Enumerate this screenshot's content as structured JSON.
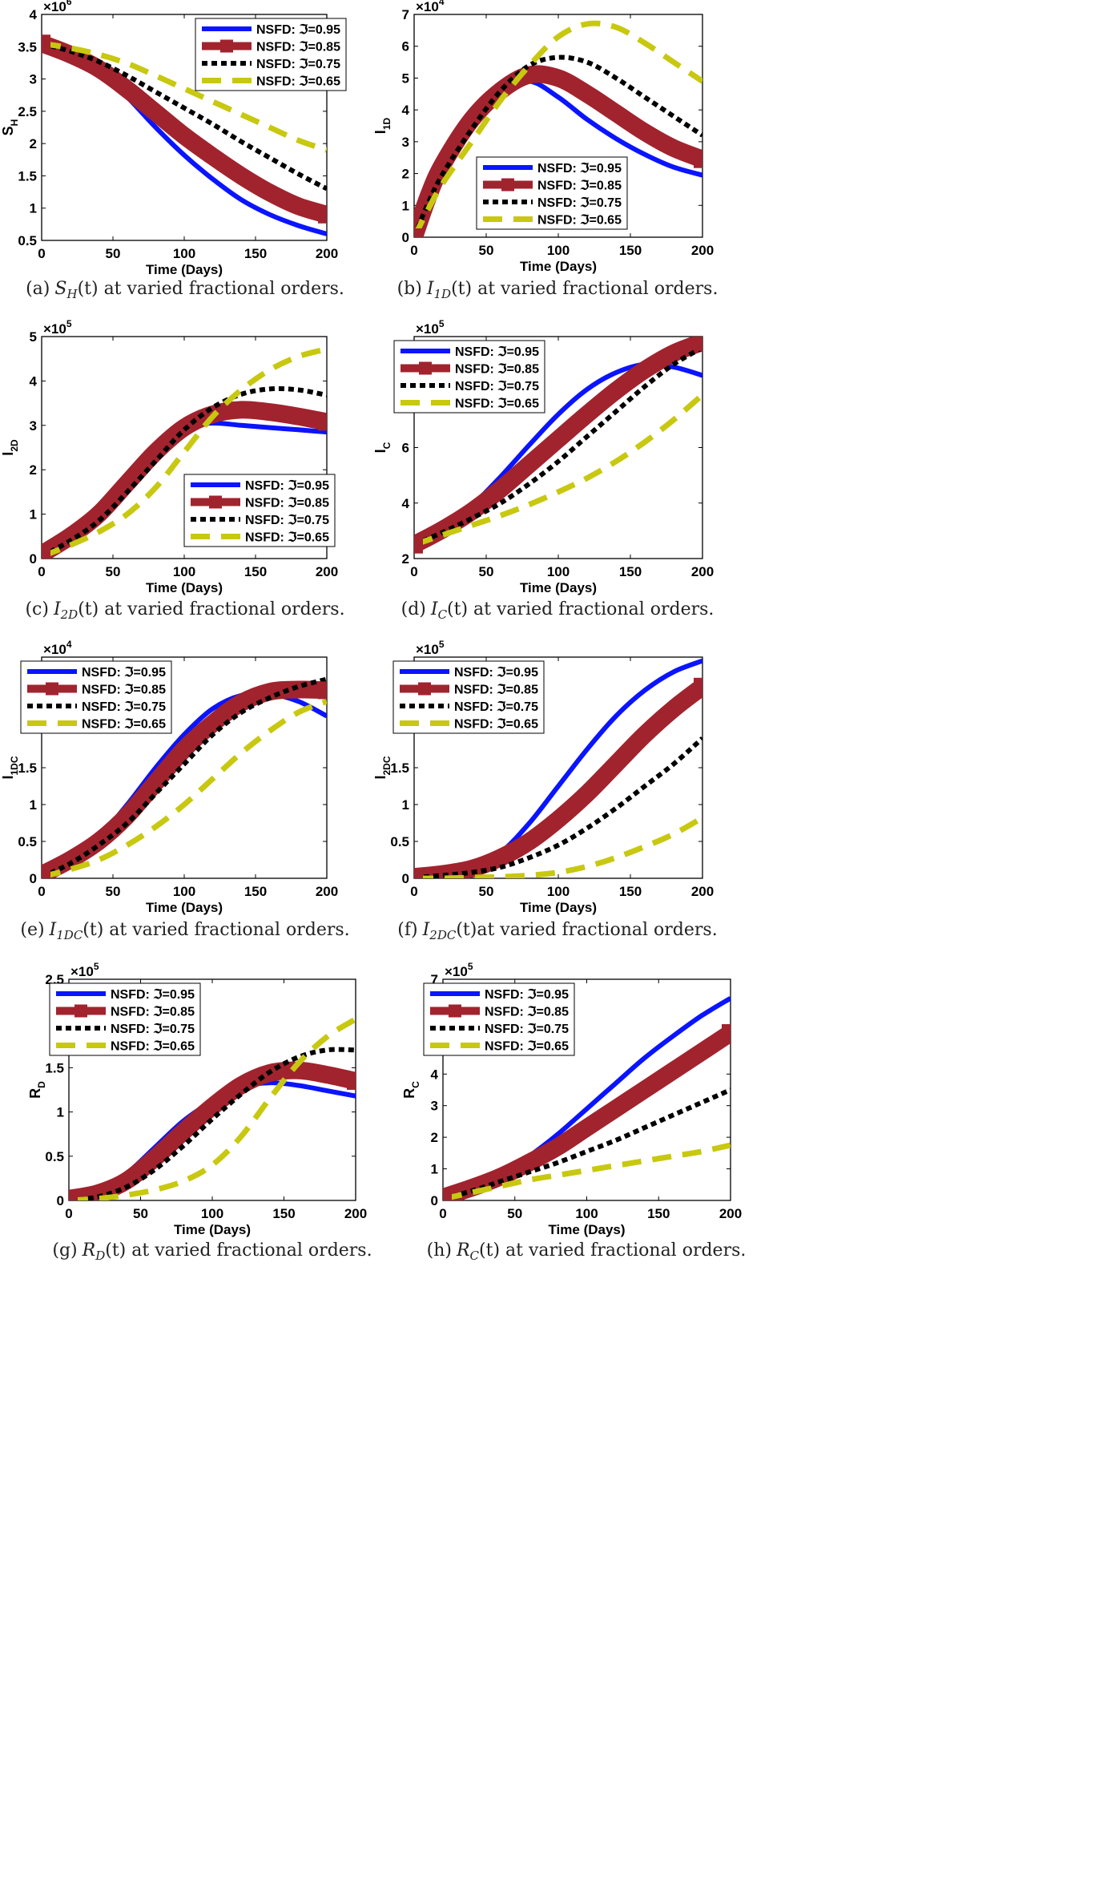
{
  "series_names": [
    "NSFD: ℑ=0.95",
    "NSFD: ℑ=0.85",
    "NSFD: ℑ=0.75",
    "NSFD: ℑ=0.65"
  ],
  "series_colors": [
    "#0a14ff",
    "#a1232e",
    "#000000",
    "#c8c810"
  ],
  "chart_data": [
    {
      "type": "line",
      "id": "a",
      "caption": {
        "letter": "(a)",
        "var": "S",
        "sub": "H",
        "rest": "(t) at varied fractional orders."
      },
      "ylabel": {
        "base": "S",
        "sub": "H"
      },
      "xlabel": "Time (Days)",
      "xlim": [
        0,
        200
      ],
      "ylim": [
        0.5,
        4
      ],
      "exponent": "6",
      "xticks": [
        0,
        50,
        100,
        150,
        200
      ],
      "yticks": [
        0.5,
        1,
        1.5,
        2,
        2.5,
        3,
        3.5,
        4
      ],
      "legend": "top-right",
      "x": [
        0,
        20,
        40,
        60,
        80,
        100,
        120,
        140,
        160,
        180,
        200
      ],
      "series": [
        {
          "name": "NSFD: ℑ=0.95",
          "values": [
            3.55,
            3.38,
            3.12,
            2.72,
            2.25,
            1.82,
            1.45,
            1.13,
            0.9,
            0.73,
            0.6
          ]
        },
        {
          "name": "NSFD: ℑ=0.85",
          "values": [
            3.55,
            3.38,
            3.16,
            2.84,
            2.48,
            2.12,
            1.8,
            1.5,
            1.24,
            1.03,
            0.9
          ]
        },
        {
          "name": "NSFD: ℑ=0.75",
          "values": [
            3.55,
            3.43,
            3.27,
            3.05,
            2.8,
            2.55,
            2.3,
            2.03,
            1.78,
            1.53,
            1.3
          ]
        },
        {
          "name": "NSFD: ℑ=0.65",
          "values": [
            3.55,
            3.48,
            3.38,
            3.24,
            3.05,
            2.85,
            2.65,
            2.45,
            2.25,
            2.05,
            1.9
          ]
        }
      ]
    },
    {
      "type": "line",
      "id": "b",
      "caption": {
        "letter": "(b)",
        "var": "I",
        "sub": "1D",
        "rest": "(t) at varied fractional orders."
      },
      "ylabel": {
        "base": "I",
        "sub": "1D"
      },
      "xlabel": "Time (Days)",
      "xlim": [
        0,
        200
      ],
      "ylim": [
        0,
        7
      ],
      "exponent": "4",
      "xticks": [
        0,
        50,
        100,
        150,
        200
      ],
      "yticks": [
        0,
        1,
        2,
        3,
        4,
        5,
        6,
        7
      ],
      "legend": "bottom-center",
      "x": [
        0,
        10,
        20,
        40,
        60,
        80,
        100,
        120,
        140,
        160,
        180,
        200
      ],
      "series": [
        {
          "name": "NSFD: ℑ=0.95",
          "values": [
            0,
            1.3,
            2.3,
            3.7,
            4.6,
            4.9,
            4.4,
            3.7,
            3.1,
            2.6,
            2.2,
            1.95
          ]
        },
        {
          "name": "NSFD: ℑ=0.85",
          "values": [
            0,
            1.3,
            2.3,
            3.7,
            4.6,
            5.1,
            5.0,
            4.5,
            3.9,
            3.3,
            2.8,
            2.45
          ]
        },
        {
          "name": "NSFD: ℑ=0.75",
          "values": [
            0,
            1.1,
            2.0,
            3.4,
            4.6,
            5.4,
            5.65,
            5.5,
            5.0,
            4.4,
            3.8,
            3.2
          ]
        },
        {
          "name": "NSFD: ℑ=0.65",
          "values": [
            0,
            0.9,
            1.7,
            3.0,
            4.3,
            5.4,
            6.3,
            6.7,
            6.6,
            6.1,
            5.5,
            4.9
          ]
        }
      ]
    },
    {
      "type": "line",
      "id": "c",
      "caption": {
        "letter": "(c)",
        "var": "I",
        "sub": "2D",
        "rest": "(t) at varied fractional orders."
      },
      "ylabel": {
        "base": "I",
        "sub": "2D"
      },
      "xlabel": "Time (Days)",
      "xlim": [
        0,
        200
      ],
      "ylim": [
        0,
        5
      ],
      "exponent": "5",
      "xticks": [
        0,
        50,
        100,
        150,
        200
      ],
      "yticks": [
        0,
        1,
        2,
        3,
        4,
        5
      ],
      "legend": "bottom-right",
      "x": [
        0,
        20,
        40,
        60,
        80,
        100,
        120,
        140,
        160,
        180,
        200
      ],
      "series": [
        {
          "name": "NSFD: ℑ=0.95",
          "values": [
            0.1,
            0.5,
            1.1,
            1.9,
            2.55,
            2.95,
            3.05,
            3.0,
            2.95,
            2.9,
            2.85
          ]
        },
        {
          "name": "NSFD: ℑ=0.85",
          "values": [
            0.1,
            0.5,
            1.0,
            1.7,
            2.4,
            2.95,
            3.25,
            3.35,
            3.3,
            3.2,
            3.08
          ]
        },
        {
          "name": "NSFD: ℑ=0.75",
          "values": [
            0.05,
            0.4,
            0.85,
            1.5,
            2.2,
            2.9,
            3.4,
            3.7,
            3.82,
            3.8,
            3.68
          ]
        },
        {
          "name": "NSFD: ℑ=0.65",
          "values": [
            0.05,
            0.3,
            0.6,
            1.0,
            1.6,
            2.4,
            3.2,
            3.8,
            4.25,
            4.55,
            4.72
          ]
        }
      ]
    },
    {
      "type": "line",
      "id": "d",
      "caption": {
        "letter": "(d)",
        "var": "I",
        "sub": "C",
        "rest": "(t) at varied fractional orders."
      },
      "ylabel": {
        "base": "I",
        "sub": "C"
      },
      "xlabel": "Time (Days)",
      "xlim": [
        0,
        200
      ],
      "ylim": [
        2,
        10
      ],
      "exponent": "5",
      "xticks": [
        0,
        50,
        100,
        150,
        200
      ],
      "yticks": [
        2,
        4,
        6
      ],
      "legend": "top-left",
      "x": [
        0,
        20,
        40,
        60,
        80,
        100,
        120,
        140,
        160,
        180,
        200
      ],
      "series": [
        {
          "name": "NSFD: ℑ=0.95",
          "values": [
            2.5,
            3.1,
            3.9,
            4.95,
            6.1,
            7.2,
            8.1,
            8.7,
            9.0,
            8.9,
            8.6
          ]
        },
        {
          "name": "NSFD: ℑ=0.85",
          "values": [
            2.5,
            3.05,
            3.7,
            4.5,
            5.4,
            6.3,
            7.2,
            8.05,
            8.8,
            9.4,
            9.8
          ]
        },
        {
          "name": "NSFD: ℑ=0.75",
          "values": [
            2.5,
            2.95,
            3.45,
            4.0,
            4.7,
            5.5,
            6.4,
            7.3,
            8.2,
            9.0,
            9.6
          ]
        },
        {
          "name": "NSFD: ℑ=0.65",
          "values": [
            2.5,
            2.85,
            3.2,
            3.55,
            3.95,
            4.4,
            4.9,
            5.5,
            6.2,
            7.0,
            7.9
          ]
        }
      ]
    },
    {
      "type": "line",
      "id": "e",
      "caption": {
        "letter": "(e)",
        "var": "I",
        "sub": "1DC",
        "rest": "(t) at varied fractional orders."
      },
      "ylabel": {
        "base": "I",
        "sub": "1DC"
      },
      "xlabel": "Time (Days)",
      "xlim": [
        0,
        200
      ],
      "ylim": [
        0,
        3
      ],
      "exponent": "4",
      "xticks": [
        0,
        50,
        100,
        150,
        200
      ],
      "yticks": [
        0,
        0.5,
        1,
        1.5
      ],
      "legend": "top-left",
      "x": [
        0,
        20,
        40,
        60,
        80,
        100,
        120,
        140,
        160,
        180,
        200
      ],
      "series": [
        {
          "name": "NSFD: ℑ=0.95",
          "values": [
            0.05,
            0.25,
            0.55,
            1.0,
            1.5,
            1.95,
            2.3,
            2.48,
            2.5,
            2.4,
            2.2
          ]
        },
        {
          "name": "NSFD: ℑ=0.85",
          "values": [
            0.05,
            0.25,
            0.5,
            0.85,
            1.3,
            1.75,
            2.1,
            2.38,
            2.53,
            2.56,
            2.55
          ]
        },
        {
          "name": "NSFD: ℑ=0.75",
          "values": [
            0.02,
            0.2,
            0.45,
            0.75,
            1.15,
            1.55,
            1.95,
            2.25,
            2.45,
            2.6,
            2.7
          ]
        },
        {
          "name": "NSFD: ℑ=0.65",
          "values": [
            0.02,
            0.12,
            0.25,
            0.45,
            0.7,
            1.0,
            1.35,
            1.7,
            2.0,
            2.25,
            2.4
          ]
        }
      ]
    },
    {
      "type": "line",
      "id": "f",
      "caption": {
        "letter": "(f)",
        "var": "I",
        "sub": "2DC",
        "rest": "(t)at varied fractional orders."
      },
      "ylabel": {
        "base": "I",
        "sub": "2DC"
      },
      "xlabel": "Time (Days)",
      "xlim": [
        0,
        200
      ],
      "ylim": [
        0,
        3
      ],
      "exponent": "5",
      "xticks": [
        0,
        50,
        100,
        150,
        200
      ],
      "yticks": [
        0,
        0.5,
        1,
        1.5
      ],
      "legend": "top-left",
      "x": [
        0,
        20,
        40,
        60,
        80,
        100,
        120,
        140,
        160,
        180,
        200
      ],
      "series": [
        {
          "name": "NSFD: ℑ=0.95",
          "values": [
            0.02,
            0.06,
            0.15,
            0.35,
            0.75,
            1.25,
            1.75,
            2.2,
            2.55,
            2.8,
            2.95
          ]
        },
        {
          "name": "NSFD: ℑ=0.85",
          "values": [
            0.02,
            0.06,
            0.13,
            0.28,
            0.5,
            0.8,
            1.15,
            1.55,
            1.95,
            2.3,
            2.6
          ]
        },
        {
          "name": "NSFD: ℑ=0.75",
          "values": [
            0.01,
            0.04,
            0.08,
            0.15,
            0.28,
            0.45,
            0.68,
            0.95,
            1.25,
            1.55,
            1.9
          ]
        },
        {
          "name": "NSFD: ℑ=0.65",
          "values": [
            0.0,
            0.0,
            0.01,
            0.02,
            0.04,
            0.08,
            0.16,
            0.28,
            0.43,
            0.6,
            0.82
          ]
        }
      ]
    },
    {
      "type": "line",
      "id": "g",
      "caption": {
        "letter": "(g)",
        "var": "R",
        "sub": "D",
        "rest": "(t) at varied fractional orders."
      },
      "ylabel": {
        "base": "R",
        "sub": "D"
      },
      "xlabel": "Time (Days)",
      "xlim": [
        0,
        200
      ],
      "ylim": [
        0,
        2.5
      ],
      "exponent": "5",
      "xticks": [
        0,
        50,
        100,
        150,
        200
      ],
      "yticks": [
        0,
        0.5,
        1,
        1.5,
        2.5
      ],
      "legend": "top-left",
      "x": [
        0,
        20,
        40,
        60,
        80,
        100,
        120,
        140,
        160,
        180,
        200
      ],
      "series": [
        {
          "name": "NSFD: ℑ=0.95",
          "values": [
            0.02,
            0.1,
            0.3,
            0.6,
            0.9,
            1.12,
            1.28,
            1.33,
            1.3,
            1.24,
            1.18
          ]
        },
        {
          "name": "NSFD: ℑ=0.85",
          "values": [
            0.02,
            0.08,
            0.22,
            0.48,
            0.78,
            1.06,
            1.3,
            1.44,
            1.47,
            1.42,
            1.35
          ]
        },
        {
          "name": "NSFD: ℑ=0.75",
          "values": [
            0.0,
            0.04,
            0.15,
            0.35,
            0.62,
            0.92,
            1.2,
            1.45,
            1.62,
            1.7,
            1.7
          ]
        },
        {
          "name": "NSFD: ℑ=0.65",
          "values": [
            0.0,
            0.02,
            0.06,
            0.12,
            0.22,
            0.4,
            0.72,
            1.15,
            1.55,
            1.85,
            2.05
          ]
        }
      ]
    },
    {
      "type": "line",
      "id": "h",
      "caption": {
        "letter": "(h)",
        "var": "R",
        "sub": "C",
        "rest": "(t) at varied fractional orders."
      },
      "ylabel": {
        "base": "R",
        "sub": "C"
      },
      "xlabel": "Time (Days)",
      "xlim": [
        0,
        200
      ],
      "ylim": [
        0,
        7
      ],
      "exponent": "5",
      "xticks": [
        0,
        50,
        100,
        150,
        200
      ],
      "yticks": [
        0,
        1,
        2,
        3,
        4,
        7
      ],
      "legend": "top-left",
      "x": [
        0,
        20,
        40,
        60,
        80,
        100,
        120,
        140,
        160,
        180,
        200
      ],
      "series": [
        {
          "name": "NSFD: ℑ=0.95",
          "values": [
            0.1,
            0.4,
            0.8,
            1.4,
            2.1,
            2.9,
            3.7,
            4.5,
            5.2,
            5.85,
            6.4
          ]
        },
        {
          "name": "NSFD: ℑ=0.85",
          "values": [
            0.1,
            0.4,
            0.75,
            1.2,
            1.7,
            2.3,
            2.9,
            3.5,
            4.1,
            4.7,
            5.3
          ]
        },
        {
          "name": "NSFD: ℑ=0.75",
          "values": [
            0.05,
            0.3,
            0.6,
            0.9,
            1.2,
            1.55,
            1.9,
            2.3,
            2.7,
            3.1,
            3.5
          ]
        },
        {
          "name": "NSFD: ℑ=0.65",
          "values": [
            0.05,
            0.25,
            0.45,
            0.65,
            0.8,
            0.95,
            1.1,
            1.25,
            1.4,
            1.55,
            1.75
          ]
        }
      ]
    }
  ]
}
